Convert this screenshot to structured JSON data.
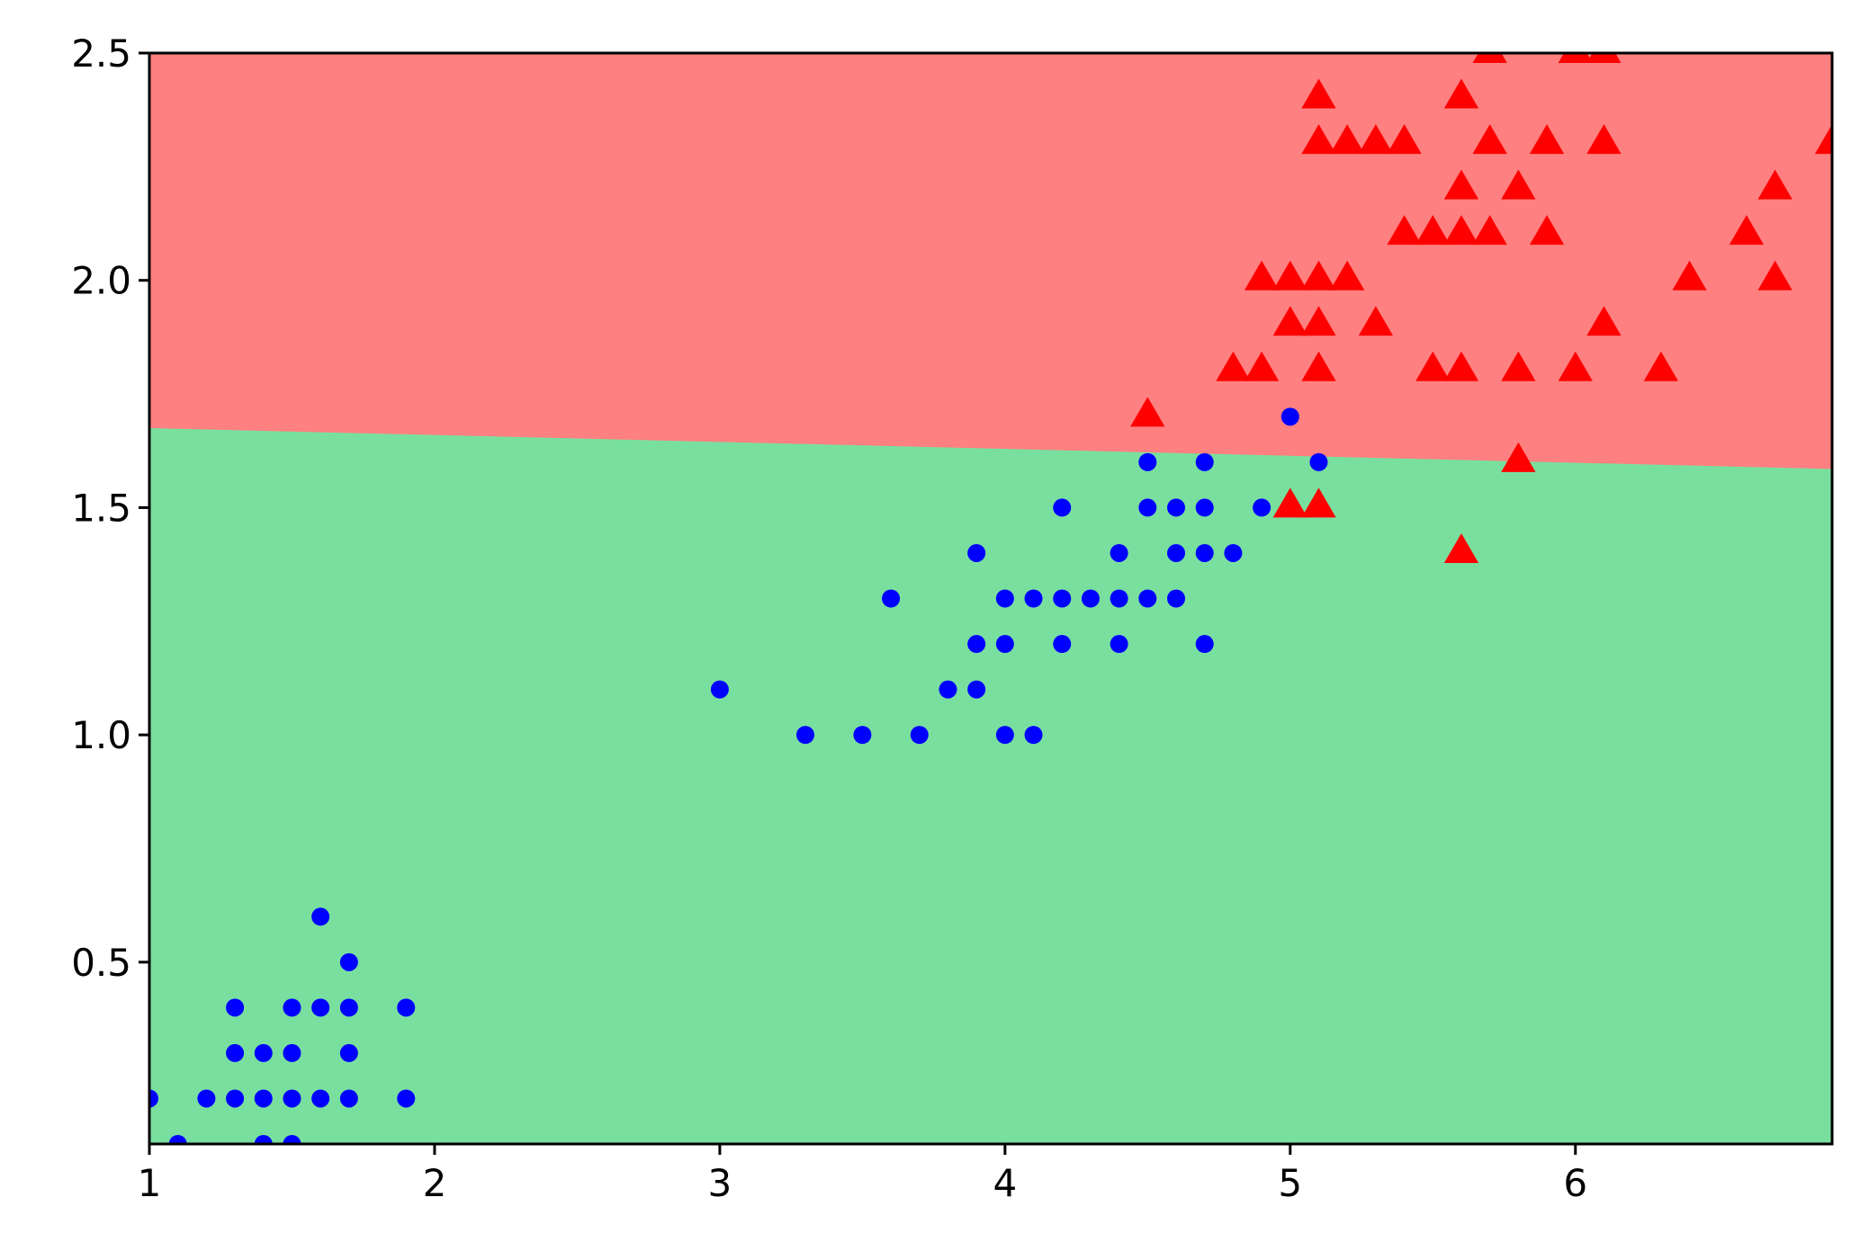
{
  "chart_data": {
    "type": "scatter",
    "title": "",
    "xlabel": "",
    "ylabel": "",
    "xlim": [
      1.0,
      6.9
    ],
    "ylim": [
      0.1,
      2.5
    ],
    "xticks": [
      1,
      2,
      3,
      4,
      5,
      6
    ],
    "xtick_labels": [
      "1",
      "2",
      "3",
      "4",
      "5",
      "6"
    ],
    "yticks": [
      0.5,
      1.0,
      1.5,
      2.0,
      2.5
    ],
    "ytick_labels": [
      "0.5",
      "1.0",
      "1.5",
      "2.0",
      "2.5"
    ],
    "grid": false,
    "legend": "none",
    "decision_regions": {
      "boundary": [
        [
          1.0,
          1.675
        ],
        [
          6.9,
          1.585
        ]
      ],
      "upper_region_color": "#ff8080",
      "lower_region_color": "#79df9f"
    },
    "series": [
      {
        "marker": "circle",
        "color": "#0000ff",
        "points": [
          [
            1.0,
            0.2
          ],
          [
            1.1,
            0.1
          ],
          [
            1.2,
            0.2
          ],
          [
            1.3,
            0.4
          ],
          [
            1.3,
            0.3
          ],
          [
            1.3,
            0.2
          ],
          [
            1.4,
            0.3
          ],
          [
            1.4,
            0.2
          ],
          [
            1.4,
            0.1
          ],
          [
            1.5,
            0.4
          ],
          [
            1.5,
            0.3
          ],
          [
            1.5,
            0.2
          ],
          [
            1.5,
            0.1
          ],
          [
            1.6,
            0.6
          ],
          [
            1.6,
            0.4
          ],
          [
            1.6,
            0.2
          ],
          [
            1.7,
            0.5
          ],
          [
            1.7,
            0.4
          ],
          [
            1.7,
            0.3
          ],
          [
            1.7,
            0.2
          ],
          [
            1.9,
            0.4
          ],
          [
            1.9,
            0.2
          ],
          [
            3.0,
            1.1
          ],
          [
            3.3,
            1.0
          ],
          [
            3.5,
            1.0
          ],
          [
            3.6,
            1.3
          ],
          [
            3.7,
            1.0
          ],
          [
            3.8,
            1.1
          ],
          [
            3.9,
            1.4
          ],
          [
            3.9,
            1.2
          ],
          [
            3.9,
            1.1
          ],
          [
            4.0,
            1.3
          ],
          [
            4.0,
            1.2
          ],
          [
            4.0,
            1.0
          ],
          [
            4.1,
            1.3
          ],
          [
            4.1,
            1.0
          ],
          [
            4.2,
            1.5
          ],
          [
            4.2,
            1.3
          ],
          [
            4.2,
            1.2
          ],
          [
            4.3,
            1.3
          ],
          [
            4.4,
            1.4
          ],
          [
            4.4,
            1.3
          ],
          [
            4.4,
            1.2
          ],
          [
            4.5,
            1.6
          ],
          [
            4.5,
            1.5
          ],
          [
            4.5,
            1.3
          ],
          [
            4.6,
            1.5
          ],
          [
            4.6,
            1.4
          ],
          [
            4.6,
            1.3
          ],
          [
            4.7,
            1.6
          ],
          [
            4.7,
            1.5
          ],
          [
            4.7,
            1.4
          ],
          [
            4.7,
            1.2
          ],
          [
            4.8,
            1.8
          ],
          [
            4.8,
            1.4
          ],
          [
            4.9,
            1.5
          ],
          [
            5.0,
            1.7
          ],
          [
            5.1,
            1.6
          ]
        ]
      },
      {
        "marker": "triangle",
        "color": "#ff0000",
        "points": [
          [
            4.5,
            1.7
          ],
          [
            4.8,
            1.8
          ],
          [
            4.9,
            2.0
          ],
          [
            4.9,
            1.8
          ],
          [
            5.0,
            2.0
          ],
          [
            5.0,
            1.9
          ],
          [
            5.0,
            1.5
          ],
          [
            5.1,
            2.4
          ],
          [
            5.1,
            2.3
          ],
          [
            5.1,
            2.0
          ],
          [
            5.1,
            1.9
          ],
          [
            5.1,
            1.8
          ],
          [
            5.1,
            1.5
          ],
          [
            5.2,
            2.3
          ],
          [
            5.2,
            2.0
          ],
          [
            5.3,
            2.3
          ],
          [
            5.3,
            1.9
          ],
          [
            5.4,
            2.3
          ],
          [
            5.4,
            2.1
          ],
          [
            5.5,
            2.1
          ],
          [
            5.5,
            1.8
          ],
          [
            5.6,
            2.4
          ],
          [
            5.6,
            2.2
          ],
          [
            5.6,
            2.1
          ],
          [
            5.6,
            1.8
          ],
          [
            5.6,
            1.4
          ],
          [
            5.7,
            2.5
          ],
          [
            5.7,
            2.3
          ],
          [
            5.7,
            2.1
          ],
          [
            5.8,
            2.2
          ],
          [
            5.8,
            1.8
          ],
          [
            5.8,
            1.6
          ],
          [
            5.9,
            2.3
          ],
          [
            5.9,
            2.1
          ],
          [
            6.0,
            2.5
          ],
          [
            6.0,
            1.8
          ],
          [
            6.1,
            2.5
          ],
          [
            6.1,
            2.3
          ],
          [
            6.1,
            1.9
          ],
          [
            6.3,
            1.8
          ],
          [
            6.4,
            2.0
          ],
          [
            6.6,
            2.1
          ],
          [
            6.7,
            2.2
          ],
          [
            6.7,
            2.0
          ],
          [
            6.9,
            2.3
          ]
        ]
      }
    ]
  }
}
